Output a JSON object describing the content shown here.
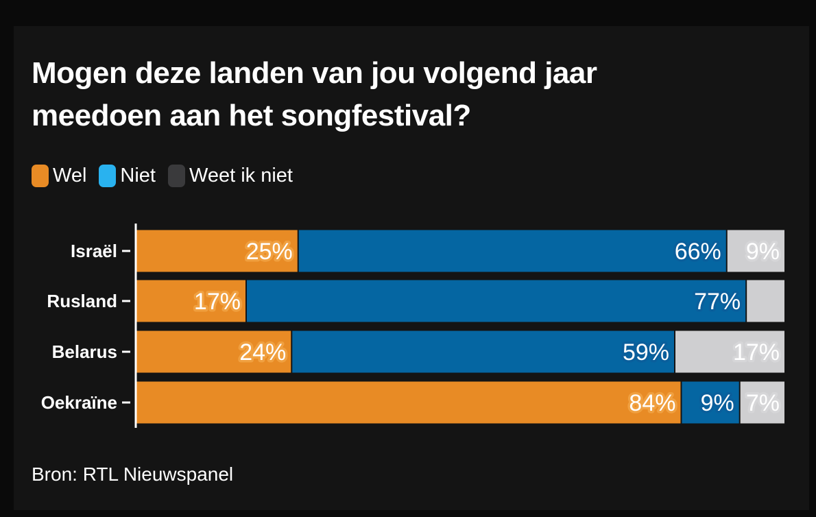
{
  "title": "Mogen deze landen van jou volgend jaar meedoen aan het songfestival?",
  "source": "Bron: RTL Nieuwspanel",
  "legend": [
    {
      "label": "Wel",
      "color": "#e88b25"
    },
    {
      "label": "Niet",
      "color": "#29b2ef"
    },
    {
      "label": "Weet ik niet",
      "color": "#3a3a3c"
    }
  ],
  "chart_data": {
    "type": "bar",
    "orientation": "horizontal",
    "stacked": true,
    "title": "Mogen deze landen van jou volgend jaar meedoen aan het songfestival?",
    "categories": [
      "Israël",
      "Rusland",
      "Belarus",
      "Oekraïne"
    ],
    "series": [
      {
        "name": "Wel",
        "values": [
          25,
          17,
          24,
          84
        ],
        "labels": [
          "25%",
          "17%",
          "24%",
          "84%"
        ],
        "color": "#e88b25"
      },
      {
        "name": "Niet",
        "values": [
          66,
          77,
          59,
          9
        ],
        "labels": [
          "66%",
          "77%",
          "59%",
          "9%"
        ],
        "color": "#0566a2"
      },
      {
        "name": "Weet ik niet",
        "values": [
          9,
          6,
          17,
          7
        ],
        "labels": [
          "9%",
          "",
          "17%",
          "7%"
        ],
        "color": "#cfcfd1"
      }
    ],
    "xlim": [
      0,
      100
    ],
    "grid": false,
    "legend": "top-left"
  }
}
